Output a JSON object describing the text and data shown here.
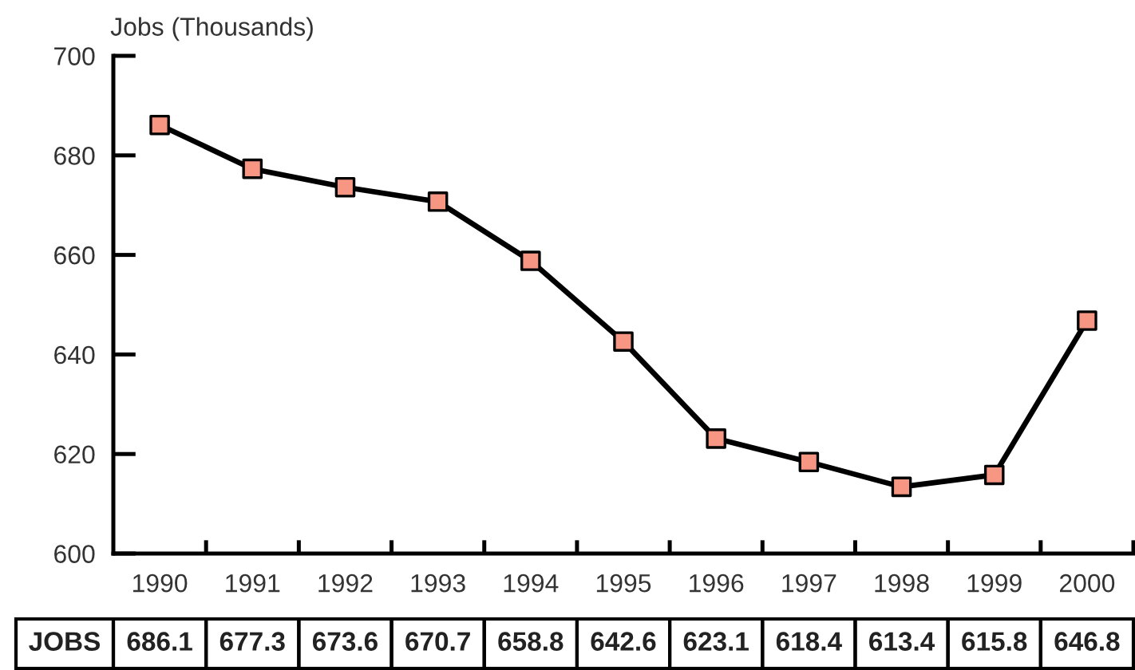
{
  "chart_data": {
    "type": "line",
    "ylabel": "Jobs (Thousands)",
    "categories": [
      "1990",
      "1991",
      "1992",
      "1993",
      "1994",
      "1995",
      "1996",
      "1997",
      "1998",
      "1999",
      "2000"
    ],
    "series": [
      {
        "name": "JOBS",
        "color": "#000000",
        "colors": [
          "#f79783",
          "#f79783",
          "#f79783",
          "#f79783",
          "#f79783",
          "#f79783",
          "#f79783",
          "#f79783",
          "#f79783",
          "#f79783",
          "#f79783"
        ],
        "values": [
          686.1,
          677.3,
          673.6,
          670.7,
          658.8,
          642.6,
          623.1,
          618.4,
          613.4,
          615.8,
          646.8
        ]
      }
    ],
    "ylim": [
      600,
      700
    ],
    "yticks": [
      600,
      620,
      640,
      660,
      680,
      700
    ],
    "marker": "square",
    "line_style": "solid",
    "grid": false,
    "data_labels": true
  }
}
